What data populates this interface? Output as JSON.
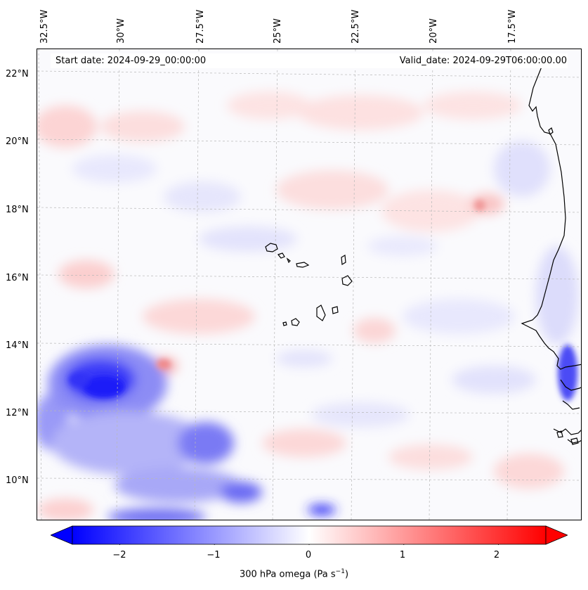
{
  "map": {
    "longitude_labels": [
      "32.5°W",
      "30°W",
      "27.5°W",
      "25°W",
      "22.5°W",
      "20°W",
      "17.5°W"
    ],
    "latitude_labels": [
      "22°N",
      "20°N",
      "18°N",
      "16°N",
      "14°N",
      "12°N",
      "10°N"
    ],
    "start_date": "Start date: 2024-09-29_00:00:00",
    "valid_date": "Valid_date: 2024-09-29T06:00:00.00",
    "field_range": [
      -2.5,
      2.5
    ],
    "colormap": [
      "#0000ff",
      "#ffffff",
      "#ff0000"
    ],
    "coastline_color": "#000000",
    "gridlines": "dashed"
  },
  "colorbar": {
    "ticks": [
      "−2",
      "−1",
      "0",
      "1",
      "2"
    ],
    "tick_values": [
      -2,
      -1,
      0,
      1,
      2
    ],
    "label_main": "300 hPa omega (Pa s",
    "label_sup": "−1",
    "label_close": ")"
  }
}
